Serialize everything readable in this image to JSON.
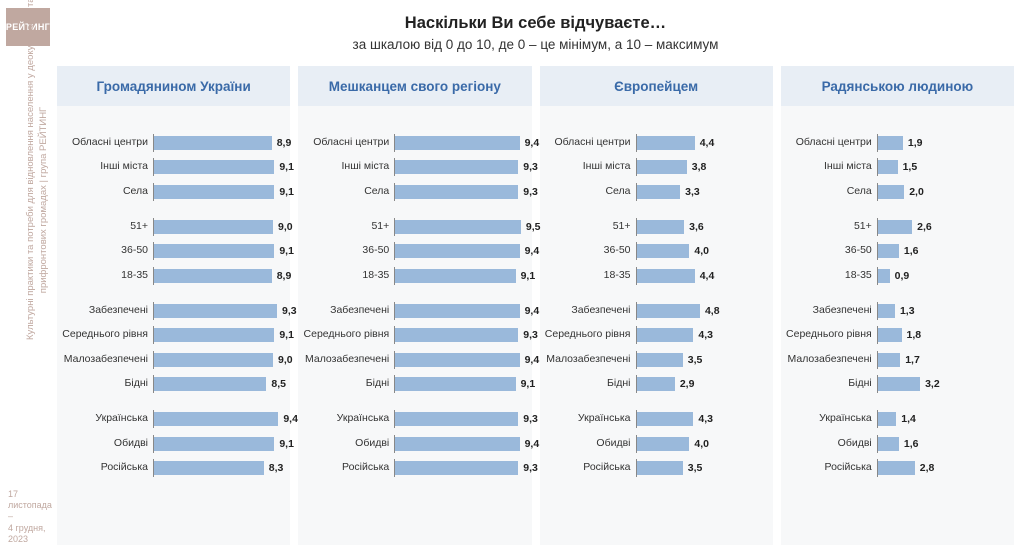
{
  "logo_text": "РЕЙТИНГ",
  "side_text_line1": "Культурні практики та потреби для відновлення населення у деокупованих та",
  "side_text_line2": "прифронтових громадах | група РЕЙТИНГ",
  "date_line1": "17 листопада –",
  "date_line2": "4 грудня, 2023",
  "title": "Наскільки Ви себе відчуваєте…",
  "subtitle": "за шкалою від 0 до 10, де 0 – це мінімум, а 10 – максимум",
  "chart": {
    "scale_max": 10,
    "bar_color": "#9ab9db",
    "header_bg": "#e8eef5",
    "header_color": "#3a6aa8",
    "panel_bg": "#f7f8f9"
  },
  "group_breaks": [
    3,
    6,
    10,
    13
  ],
  "row_labels": [
    "Обласні центри",
    "Інші міста",
    "Села",
    "51+",
    "36-50",
    "18-35",
    "Забезпечені",
    "Середнього рівня",
    "Малозабезпечені",
    "Бідні",
    "Українська",
    "Обидві",
    "Російська"
  ],
  "panels": [
    {
      "title": "Громадянином України",
      "values": [
        8.9,
        9.1,
        9.1,
        9.0,
        9.1,
        8.9,
        9.3,
        9.1,
        9.0,
        8.5,
        9.4,
        9.1,
        8.3
      ]
    },
    {
      "title": "Мешканцем свого регіону",
      "values": [
        9.4,
        9.3,
        9.3,
        9.5,
        9.4,
        9.1,
        9.4,
        9.3,
        9.4,
        9.1,
        9.3,
        9.4,
        9.3
      ]
    },
    {
      "title": "Європейцем",
      "values": [
        4.4,
        3.8,
        3.3,
        3.6,
        4.0,
        4.4,
        4.8,
        4.3,
        3.5,
        2.9,
        4.3,
        4.0,
        3.5
      ]
    },
    {
      "title": "Радянською людиною",
      "values": [
        1.9,
        1.5,
        2.0,
        2.6,
        1.6,
        0.9,
        1.3,
        1.8,
        1.7,
        3.2,
        1.4,
        1.6,
        2.8
      ]
    }
  ]
}
